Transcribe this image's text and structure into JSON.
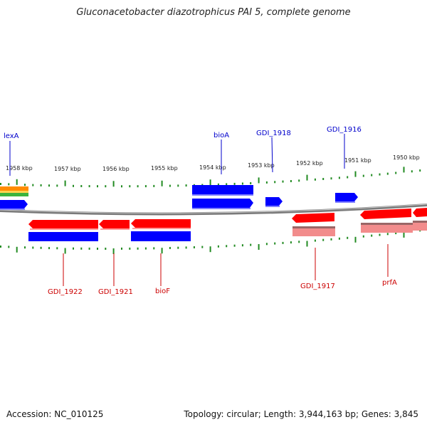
{
  "title": "Gluconacetobacter diazotrophicus PAI 5, complete genome",
  "accession_label": "Accession: NC_010125",
  "topology_label": "Topology: circular; Length: 3,944,163 bp; Genes: 3,845",
  "colors": {
    "top_strand": "#0000ff",
    "bottom_strand": "#ff0000",
    "pseudo": "#f08a8a",
    "ticks": "#228b22",
    "backbone": "#808080"
  },
  "ticks_top": [
    "1958 kbp",
    "1957 kbp",
    "1956 kbp",
    "1955 kbp",
    "1954 kbp",
    "1953 kbp",
    "1952 kbp",
    "1951 kbp",
    "1950 kbp"
  ],
  "genes_top": [
    "lexA",
    "bioA",
    "GDI_1918",
    "GDI_1916"
  ],
  "genes_bottom": [
    "GDI_1922",
    "GDI_1921",
    "bioF",
    "GDI_1917",
    "prfA"
  ]
}
